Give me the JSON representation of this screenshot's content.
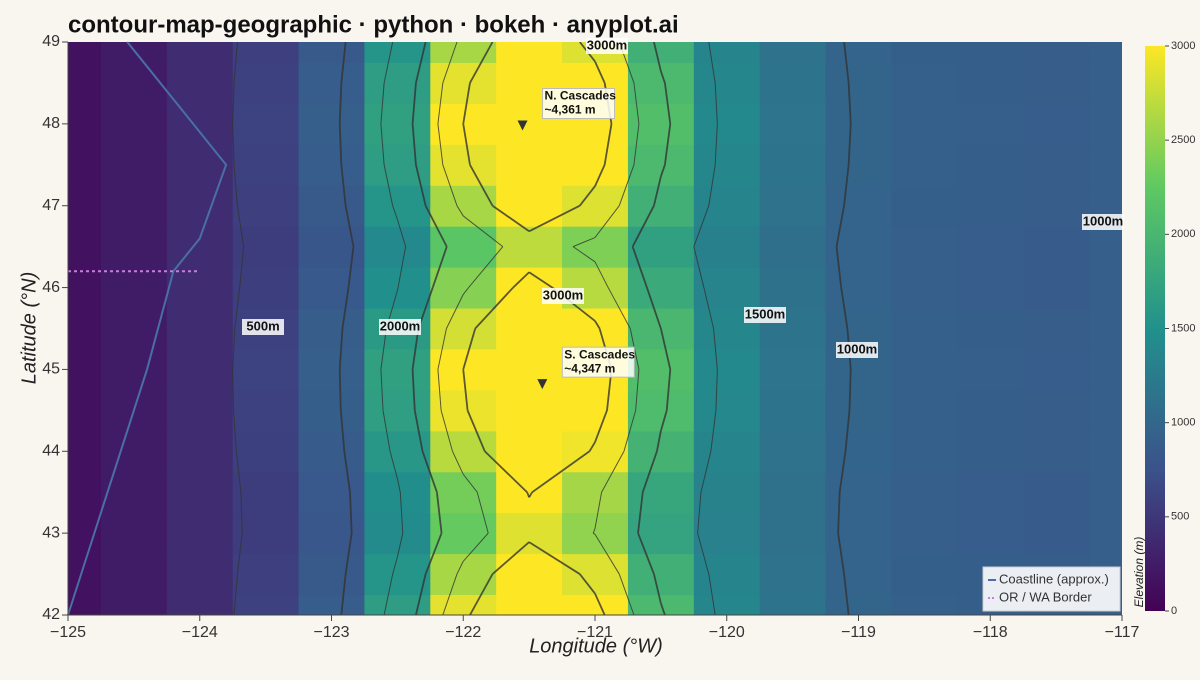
{
  "chart_data": {
    "type": "contour",
    "title": "contour-map-geographic · python · bokeh · anyplot.ai",
    "x_label": "Longitude (°W)",
    "y_label": "Latitude (°N)",
    "xlim": [
      -125,
      -117
    ],
    "ylim": [
      42,
      49
    ],
    "xticks": [
      {
        "value": -125,
        "label": "−125"
      },
      {
        "value": -124,
        "label": "−124"
      },
      {
        "value": -123,
        "label": "−123"
      },
      {
        "value": -122,
        "label": "−122"
      },
      {
        "value": -121,
        "label": "−121"
      },
      {
        "value": -120,
        "label": "−120"
      },
      {
        "value": -119,
        "label": "−119"
      },
      {
        "value": -118,
        "label": "−118"
      },
      {
        "value": -117,
        "label": "−117"
      }
    ],
    "yticks": [
      42,
      43,
      44,
      45,
      46,
      47,
      48,
      49
    ],
    "x": [
      -125,
      -124.5,
      -124,
      -123.5,
      -123,
      -122.5,
      -122,
      -121.5,
      -121,
      -120.5,
      -120,
      -119.5,
      -119,
      -118.5,
      -118,
      -117.5,
      -117
    ],
    "y": [
      42,
      42.5,
      43,
      43.5,
      44,
      44.5,
      45,
      45.5,
      46,
      46.5,
      47,
      47.5,
      48,
      48.5,
      49
    ],
    "z": [
      [
        150,
        250,
        400,
        592,
        885,
        1655,
        2880,
        4060,
        3165,
        2040,
        1385,
        1142,
        975,
        917,
        897,
        878,
        900
      ],
      [
        150,
        250,
        400,
        575,
        850,
        1550,
        2600,
        3500,
        2850,
        1900,
        1350,
        1125,
        965,
        910,
        890,
        875,
        900
      ],
      [
        150,
        250,
        400,
        555,
        810,
        1430,
        2280,
        2860,
        2490,
        1740,
        1310,
        1105,
        953,
        902,
        882,
        871,
        900
      ],
      [
        150,
        250,
        400,
        560,
        820,
        1460,
        2360,
        3020,
        2580,
        1780,
        1320,
        1110,
        956,
        904,
        884,
        872,
        900
      ],
      [
        150,
        250,
        400,
        580,
        860,
        1580,
        2680,
        3660,
        2940,
        1940,
        1360,
        1130,
        968,
        912,
        892,
        876,
        900
      ],
      [
        150,
        250,
        400,
        595,
        890,
        1670,
        2920,
        4140,
        3210,
        2060,
        1390,
        1145,
        977,
        918,
        898,
        879,
        900
      ],
      [
        150,
        250,
        400,
        600,
        900,
        1700,
        3000,
        4300,
        3300,
        2100,
        1400,
        1150,
        980,
        920,
        900,
        880,
        900
      ],
      [
        150,
        250,
        400,
        588,
        875,
        1625,
        2800,
        3900,
        3075,
        2000,
        1375,
        1138,
        972,
        915,
        895,
        878,
        900
      ],
      [
        150,
        250,
        400,
        565,
        830,
        1490,
        2440,
        3180,
        2670,
        1820,
        1330,
        1115,
        959,
        906,
        886,
        873,
        900
      ],
      [
        150,
        250,
        400,
        550,
        800,
        1400,
        2200,
        2700,
        2400,
        1700,
        1300,
        1100,
        950,
        900,
        880,
        870,
        900
      ],
      [
        150,
        250,
        400,
        575,
        850,
        1550,
        2600,
        3500,
        2850,
        1900,
        1350,
        1125,
        965,
        910,
        890,
        875,
        900
      ],
      [
        150,
        250,
        400,
        592,
        885,
        1655,
        2880,
        4060,
        3165,
        2040,
        1385,
        1142,
        975,
        917,
        897,
        878,
        900
      ],
      [
        150,
        250,
        400,
        600,
        900,
        1700,
        3000,
        4300,
        3300,
        2100,
        1400,
        1150,
        980,
        920,
        900,
        880,
        900
      ],
      [
        150,
        250,
        400,
        592,
        885,
        1655,
        2880,
        4060,
        3165,
        2040,
        1385,
        1142,
        975,
        917,
        897,
        878,
        900
      ],
      [
        150,
        250,
        400,
        575,
        850,
        1550,
        2600,
        3500,
        2850,
        1900,
        1350,
        1125,
        965,
        910,
        890,
        875,
        900
      ]
    ],
    "colormap": [
      "#440154",
      "#3b528b",
      "#21918c",
      "#5ec962",
      "#fde725"
    ],
    "clim": [
      0,
      3000
    ],
    "colorbar_label": "Elevation (m)",
    "colorbar_ticks": [
      0,
      500,
      1000,
      1500,
      2000,
      2500,
      3000
    ],
    "contour_levels": [
      500,
      1000,
      1500,
      2000,
      2500,
      3000
    ],
    "contour_color": "#333333",
    "contour_labels": [
      "3000m",
      "3000m",
      "500m",
      "2000m",
      "1500m",
      "1000m",
      "1000m"
    ],
    "peaks": [
      {
        "label": "N. Cascades",
        "note": "~4,361 m",
        "x": -121.55,
        "y": 47.98
      },
      {
        "label": "S. Cascades",
        "note": "~4,347 m",
        "x": -121.4,
        "y": 44.82
      }
    ],
    "series": [
      {
        "name": "Coastline (approx.)",
        "color": "#4a6fa5",
        "x": [
          -124.55,
          -124.2,
          -123.8,
          -124,
          -124.2,
          -124.4,
          -124.7,
          -125
        ],
        "y": [
          49,
          48.3,
          47.5,
          46.6,
          46.2,
          45,
          43.5,
          42
        ]
      },
      {
        "name": "OR / WA Border",
        "color": "#c77dde",
        "dash": true,
        "x": [
          -125,
          -124
        ],
        "y": [
          46.2,
          46.2
        ]
      }
    ]
  }
}
